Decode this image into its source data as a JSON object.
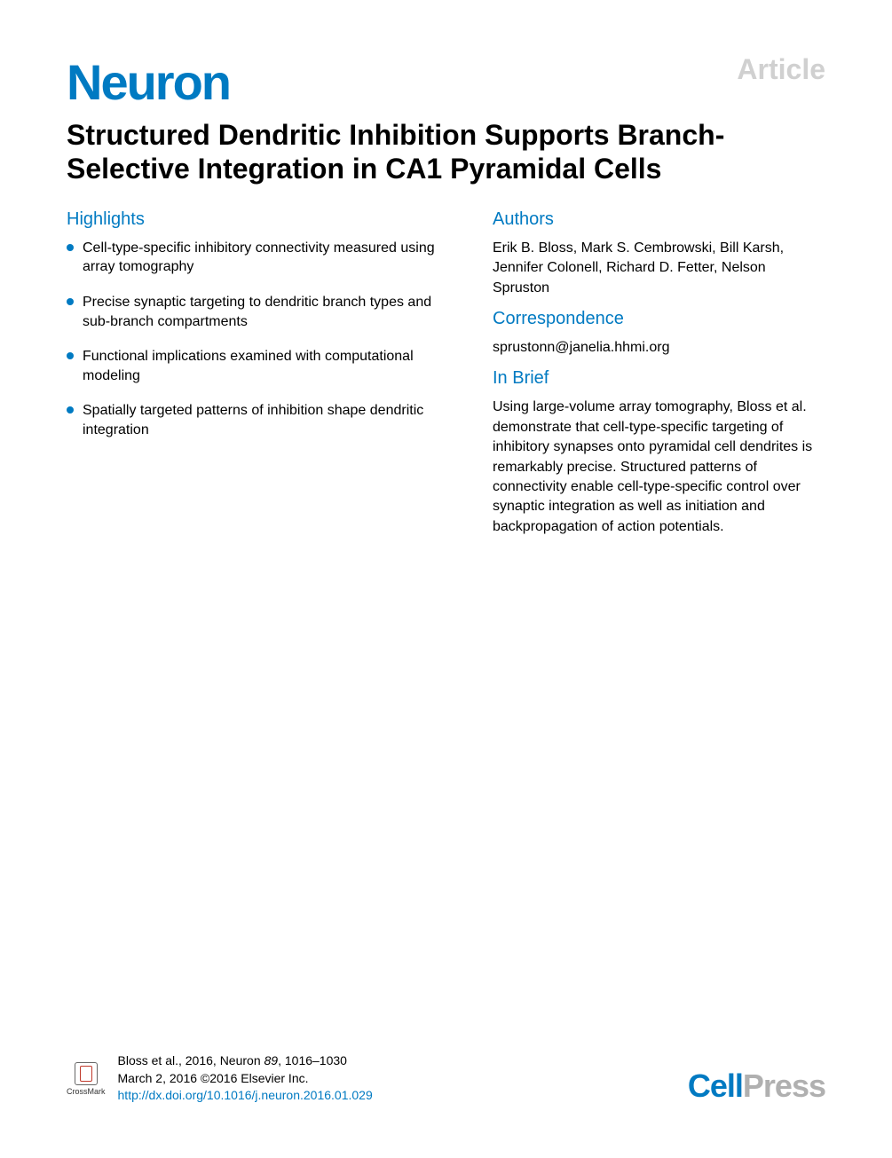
{
  "header": {
    "article_label": "Article",
    "journal_logo": "Neuron",
    "title": "Structured Dendritic Inhibition Supports Branch-Selective Integration in CA1 Pyramidal Cells"
  },
  "highlights": {
    "heading": "Highlights",
    "items": [
      "Cell-type-specific inhibitory connectivity measured using array tomography",
      "Precise synaptic targeting to dendritic branch types and sub-branch compartments",
      "Functional implications examined with computational modeling",
      "Spatially targeted patterns of inhibition shape dendritic integration"
    ]
  },
  "authors": {
    "heading": "Authors",
    "text": "Erik B. Bloss, Mark S. Cembrowski, Bill Karsh, Jennifer Colonell, Richard D. Fetter, Nelson Spruston"
  },
  "correspondence": {
    "heading": "Correspondence",
    "text": "sprustonn@janelia.hhmi.org"
  },
  "in_brief": {
    "heading": "In Brief",
    "text": "Using large-volume array tomography, Bloss et al. demonstrate that cell-type-specific targeting of inhibitory synapses onto pyramidal cell dendrites is remarkably precise. Structured patterns of connectivity enable cell-type-specific control over synaptic integration as well as initiation and backpropagation of action potentials."
  },
  "footer": {
    "crossmark_label": "CrossMark",
    "citation_line1_pre": "Bloss et al., 2016, Neuron ",
    "citation_line1_vol": "89",
    "citation_line1_pages": ", 1016–1030",
    "citation_line2": "March 2, 2016 ©2016 Elsevier Inc.",
    "citation_doi": "http://dx.doi.org/10.1016/j.neuron.2016.01.029",
    "cellpress_cell": "Cell",
    "cellpress_press": "Press"
  },
  "colors": {
    "brand_blue": "#007ac2",
    "light_gray": "#d0d0d0",
    "medium_gray": "#b0b0b0",
    "text_black": "#000000",
    "background": "#ffffff"
  },
  "typography": {
    "logo_fontsize": 56,
    "title_fontsize": 32,
    "section_heading_fontsize": 20,
    "body_fontsize": 16,
    "citation_fontsize": 14,
    "cellpress_fontsize": 36
  }
}
